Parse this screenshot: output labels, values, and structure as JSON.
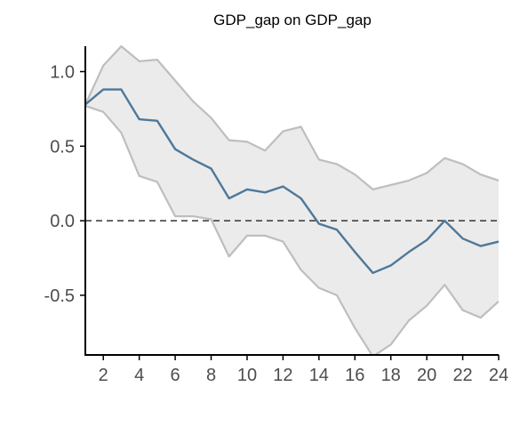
{
  "chart_data": {
    "type": "line",
    "title": "GDP_gap on GDP_gap",
    "xlabel": "",
    "ylabel": "",
    "xlim": [
      1,
      24
    ],
    "ylim": [
      -0.9,
      1.17
    ],
    "x": [
      1,
      2,
      3,
      4,
      5,
      6,
      7,
      8,
      9,
      10,
      11,
      12,
      13,
      14,
      15,
      16,
      17,
      18,
      19,
      20,
      21,
      22,
      23,
      24
    ],
    "x_ticks": [
      2,
      4,
      6,
      8,
      10,
      12,
      14,
      16,
      18,
      20,
      22,
      24
    ],
    "x_tick_labels": [
      "2",
      "4",
      "6",
      "8",
      "10",
      "12",
      "14",
      "16",
      "18",
      "20",
      "22",
      "24"
    ],
    "y_ticks": [
      1.0,
      0.5,
      0.0,
      -0.5
    ],
    "y_tick_labels": [
      "1.0",
      "0.5",
      "0.0",
      "-0.5"
    ],
    "reference_line": 0,
    "grid": false,
    "legend": "none",
    "series": [
      {
        "role": "estimate",
        "values": [
          0.78,
          0.88,
          0.88,
          0.68,
          0.67,
          0.48,
          0.41,
          0.35,
          0.15,
          0.21,
          0.19,
          0.23,
          0.15,
          -0.02,
          -0.06,
          -0.21,
          -0.35,
          -0.3,
          -0.21,
          -0.13,
          0.0,
          -0.12,
          -0.17,
          -0.14
        ]
      },
      {
        "role": "upper",
        "values": [
          0.78,
          1.04,
          1.17,
          1.07,
          1.08,
          0.94,
          0.8,
          0.69,
          0.54,
          0.53,
          0.47,
          0.6,
          0.63,
          0.41,
          0.38,
          0.31,
          0.21,
          0.24,
          0.27,
          0.32,
          0.42,
          0.38,
          0.31,
          0.27
        ]
      },
      {
        "role": "lower",
        "values": [
          0.77,
          0.73,
          0.59,
          0.3,
          0.26,
          0.03,
          0.03,
          0.01,
          -0.24,
          -0.1,
          -0.1,
          -0.14,
          -0.33,
          -0.45,
          -0.5,
          -0.72,
          -0.91,
          -0.83,
          -0.67,
          -0.57,
          -0.43,
          -0.6,
          -0.65,
          -0.54
        ]
      }
    ],
    "colors": {
      "estimate": "#4f7899",
      "band_fill": "#ebebeb",
      "band_edge": "#bebebe",
      "axis": "#000000",
      "reference": "#333333",
      "tick_text": "#4d4d4d"
    }
  }
}
